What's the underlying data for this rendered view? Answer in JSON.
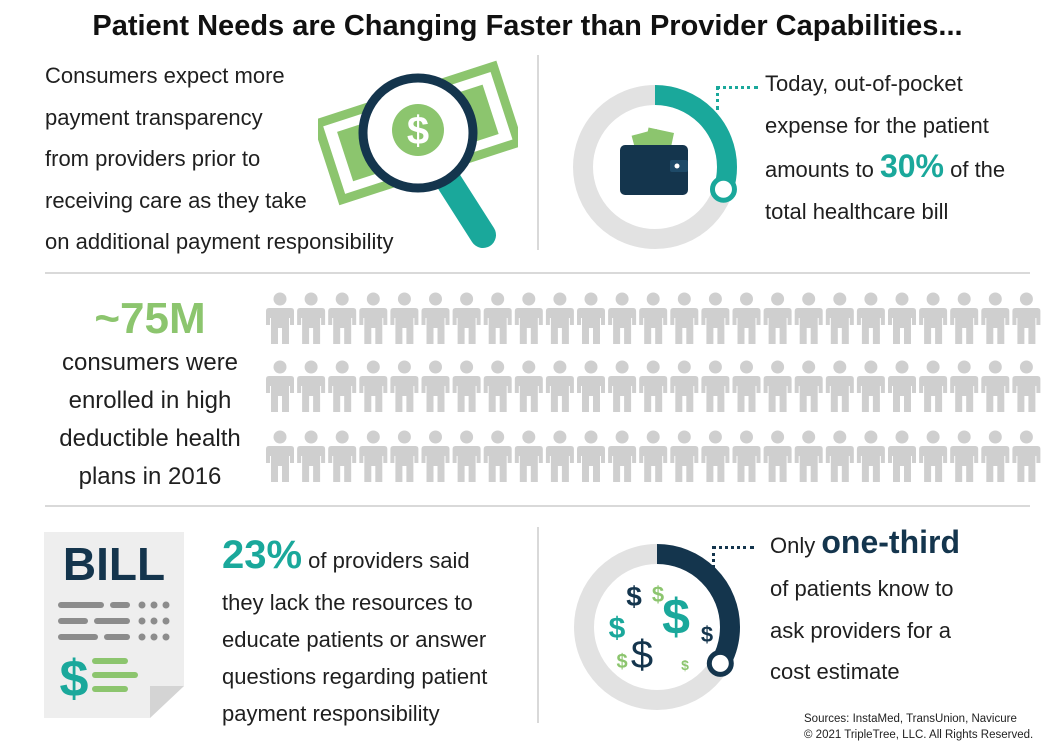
{
  "title": "Patient Needs are Changing Faster than Provider Capabilities...",
  "transparency": {
    "text_lines": [
      "Consumers expect more",
      "payment transparency",
      "from providers prior to",
      "receiving care as they take",
      "on additional payment responsibility"
    ],
    "icon": "magnifying-glass-over-dollar-bill-icon"
  },
  "out_of_pocket": {
    "line1": "Today, out-of-pocket",
    "line2": "expense for the patient",
    "line3_pre": "amounts to ",
    "line3_highlight": "30%",
    "line3_post": " of the",
    "line4": "total healthcare bill",
    "donut_fraction": 0.3,
    "icon": "wallet-icon"
  },
  "hdhp": {
    "stat": "~75M",
    "text_lines": [
      "consumers were",
      "enrolled in high",
      "deductible health",
      "plans in 2016"
    ],
    "icon": "person-icon"
  },
  "providers": {
    "stat": "23%",
    "line1_post": " of providers said",
    "text_lines": [
      "they lack the resources to",
      "educate patients or answer",
      "questions regarding patient",
      "payment responsibility"
    ],
    "bill_label": "BILL",
    "bill_dollar": "$"
  },
  "estimate": {
    "pre": "Only ",
    "highlight": "one-third",
    "text_lines": [
      "of patients know to",
      "ask providers for a",
      "cost estimate"
    ],
    "donut_fraction": 0.333,
    "icon": "dollar-signs-icon"
  },
  "sources": {
    "line1": "Sources: InstaMed, TransUnion, Navicure",
    "line2": "© 2021 TripleTree, LLC. All Rights Reserved."
  },
  "colors": {
    "teal": "#1aa89b",
    "navy": "#14354d",
    "green": "#8cc56e",
    "gray": "#d9d9d9",
    "person_gray": "#cfcfcf"
  }
}
